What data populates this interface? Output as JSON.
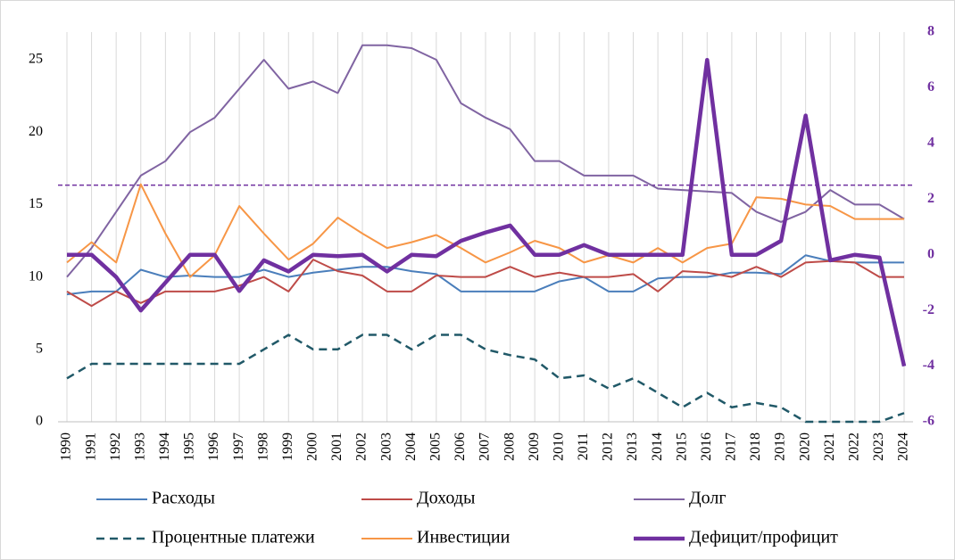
{
  "chart_data": {
    "type": "line",
    "categories": [
      "1990",
      "1991",
      "1992",
      "1993",
      "1994",
      "1995",
      "1996",
      "1997",
      "1998",
      "1999",
      "2000",
      "2001",
      "2002",
      "2003",
      "2004",
      "2005",
      "2006",
      "2007",
      "2008",
      "2009",
      "2010",
      "2011",
      "2012",
      "2013",
      "2014",
      "2015",
      "2016",
      "2017",
      "2018",
      "2019",
      "2020",
      "2021",
      "2022",
      "2023",
      "2024"
    ],
    "ylim": [
      0,
      27
    ],
    "yticks": [
      0,
      5,
      10,
      15,
      20,
      25
    ],
    "y2lim": [
      -6,
      8
    ],
    "y2ticks": [
      -6,
      -4,
      -2,
      0,
      2,
      4,
      6,
      8
    ],
    "y2_color": "#7030a0",
    "vertical_grid": true,
    "hline": {
      "value": 2.5,
      "axis": "y2",
      "color": "#7030a0",
      "dashed": true
    },
    "series": [
      {
        "name": "Расходы",
        "color": "#4a7ebb",
        "width": 2,
        "dashed": false,
        "values": [
          8.8,
          9,
          9,
          10.5,
          10,
          10.1,
          10,
          10,
          10.5,
          10,
          10.3,
          10.5,
          10.7,
          10.7,
          10.4,
          10.2,
          9,
          9,
          9,
          9,
          9.7,
          10,
          9,
          9,
          9.9,
          10,
          10,
          10.3,
          10.3,
          10.2,
          11.5,
          11.1,
          11,
          11,
          11
        ]
      },
      {
        "name": "Доходы",
        "color": "#be4b48",
        "width": 2,
        "dashed": false,
        "values": [
          9,
          8,
          9,
          8.2,
          9,
          9,
          9,
          9.4,
          10,
          9,
          11.2,
          10.4,
          10.1,
          9,
          9,
          10.1,
          10,
          10,
          10.7,
          10,
          10.3,
          10,
          10,
          10.2,
          9,
          10.4,
          10.3,
          10,
          10.7,
          10,
          11,
          11.1,
          11,
          10,
          10
        ]
      },
      {
        "name": "Долг",
        "color": "#8064a2",
        "width": 2,
        "dashed": false,
        "values": [
          10,
          12,
          14.5,
          17,
          18,
          20,
          21,
          23,
          25,
          23,
          23.5,
          22.7,
          26,
          26,
          25.8,
          25,
          22,
          21,
          20.2,
          18,
          18,
          17,
          17,
          17,
          16.1,
          16,
          15.9,
          15.8,
          14.5,
          13.8,
          14.5,
          16,
          15,
          15,
          14
        ]
      },
      {
        "name": "Процентные платежи",
        "color": "#215968",
        "width": 2.5,
        "dashed": true,
        "values": [
          3,
          4,
          4,
          4,
          4,
          4,
          4,
          4,
          5,
          6,
          5,
          5,
          6,
          6,
          5,
          6,
          6,
          5,
          4.6,
          4.3,
          3,
          3.2,
          2.3,
          3,
          2,
          1,
          2,
          1,
          1.3,
          1,
          0,
          0,
          0,
          0,
          0.6
        ]
      },
      {
        "name": "Инвестиции",
        "color": "#f79646",
        "width": 2,
        "dashed": false,
        "values": [
          11,
          12.4,
          11,
          16.4,
          13,
          10,
          11.5,
          14.9,
          13,
          11.2,
          12.3,
          14.1,
          13,
          12,
          12.4,
          12.9,
          12,
          11,
          11.7,
          12.5,
          12,
          11,
          11.5,
          11,
          12,
          11,
          12,
          12.3,
          15.5,
          15.4,
          15,
          14.9,
          14,
          14,
          14
        ]
      },
      {
        "name": "Дефицит/профицит",
        "color": "#7030a0",
        "width": 4.5,
        "dashed": false,
        "axis": "y2",
        "values": [
          0,
          0,
          -0.8,
          -2,
          -1,
          0,
          0,
          -1.3,
          -0.2,
          -0.6,
          0,
          -0.05,
          0,
          -0.6,
          0,
          -0.05,
          0.5,
          0.8,
          1.05,
          0,
          0,
          0.35,
          0,
          0,
          0,
          0,
          7,
          0,
          0,
          0.5,
          5,
          -0.2,
          0,
          -0.1,
          -4
        ]
      }
    ]
  }
}
